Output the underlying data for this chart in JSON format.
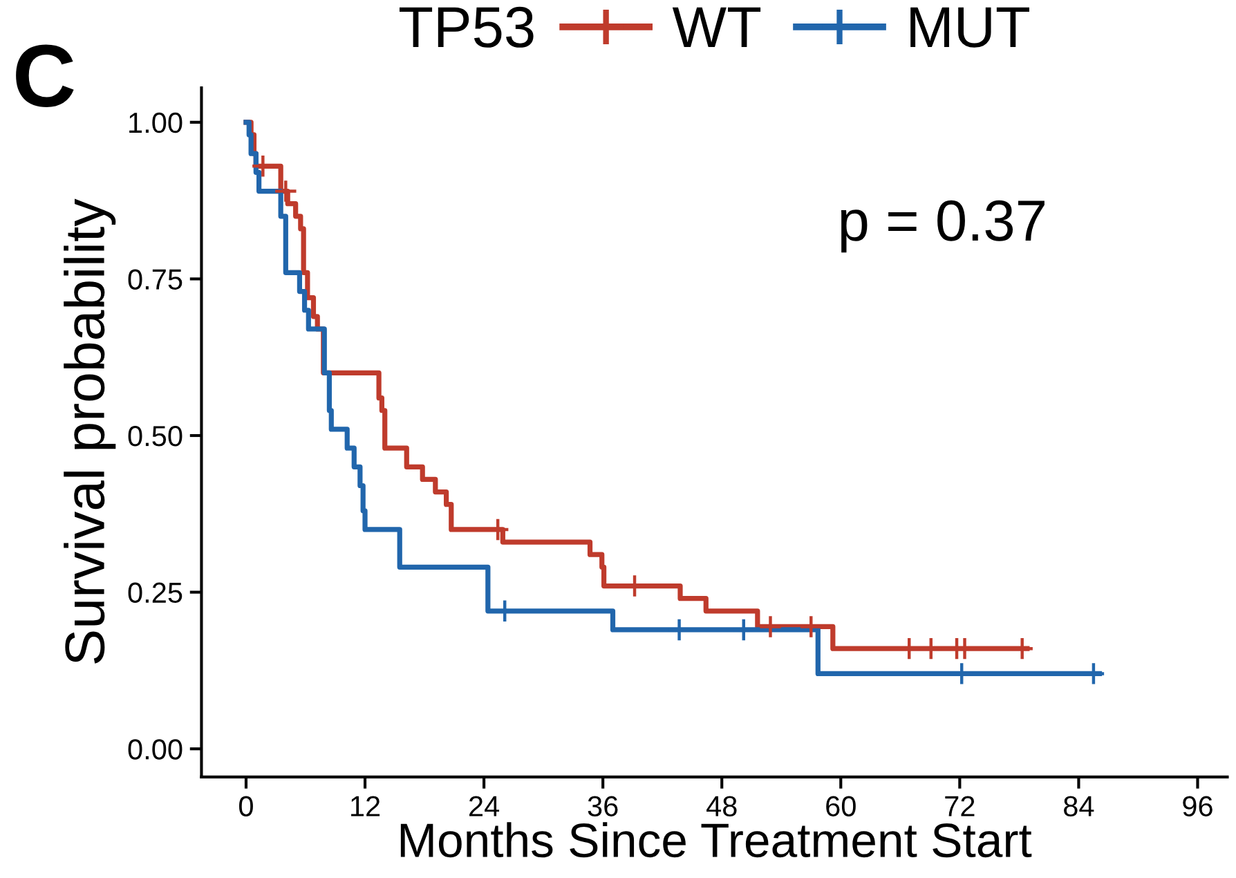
{
  "chart_data": {
    "type": "step",
    "xlabel": "Months Since Treatment Start",
    "ylabel": "Survival probability",
    "legend_title": "TP53",
    "legend": "top",
    "annotations": [
      "p = 0.37",
      "C"
    ],
    "xlim": [
      -4.5,
      99
    ],
    "ylim": [
      -0.045,
      1.055
    ],
    "xticks": [
      0,
      12,
      24,
      36,
      48,
      60,
      72,
      84,
      96
    ],
    "yticks": [
      {
        "value": 0,
        "label": "0.00"
      },
      {
        "value": 0.25,
        "label": "0.25"
      },
      {
        "value": 0.5,
        "label": "0.50"
      },
      {
        "value": 0.75,
        "label": "0.75"
      },
      {
        "value": 1,
        "label": "1.00"
      }
    ],
    "grid": false,
    "series": [
      {
        "name": "WT",
        "color": "#bf3b2c",
        "x": [
          0,
          0.5,
          0.8,
          1.0,
          3.5,
          4.2,
          5.0,
          5.5,
          5.8,
          6.2,
          6.8,
          7.2,
          7.8,
          10.2,
          13.4,
          13.7,
          14.0,
          16.2,
          17.8,
          19.1,
          20.2,
          20.7,
          25.9,
          34.7,
          35.9,
          36.1,
          43.8,
          46.4,
          51.6,
          59.2,
          78.8
        ],
        "values": [
          1.0,
          0.98,
          0.95,
          0.93,
          0.89,
          0.87,
          0.85,
          0.83,
          0.76,
          0.72,
          0.69,
          0.67,
          0.6,
          0.6,
          0.56,
          0.54,
          0.48,
          0.45,
          0.43,
          0.41,
          0.39,
          0.35,
          0.33,
          0.31,
          0.29,
          0.26,
          0.24,
          0.22,
          0.195,
          0.16,
          0.16
        ]
      },
      {
        "name": "MUT",
        "color": "#2166ac",
        "x": [
          0,
          0.3,
          0.5,
          1.0,
          1.3,
          3.5,
          4.0,
          5.4,
          5.9,
          6.3,
          7.9,
          8.4,
          8.6,
          10.2,
          10.9,
          11.5,
          11.8,
          12.0,
          15.5,
          24.4,
          37.0,
          57.7,
          86.1
        ],
        "values": [
          1.0,
          0.98,
          0.95,
          0.92,
          0.89,
          0.85,
          0.76,
          0.73,
          0.7,
          0.67,
          0.6,
          0.54,
          0.51,
          0.48,
          0.45,
          0.42,
          0.38,
          0.35,
          0.29,
          0.22,
          0.19,
          0.12,
          0.12
        ]
      },
      {
        "type": "scatter",
        "color": "#bf3b2c",
        "marker": "cross",
        "x": [
          1.7,
          4.0,
          25.4,
          39.2,
          52.9,
          57.0,
          66.9,
          69.1,
          71.7,
          72.5,
          78.3
        ],
        "values": [
          0.93,
          0.89,
          0.35,
          0.26,
          0.195,
          0.195,
          0.16,
          0.16,
          0.16,
          0.16,
          0.16
        ]
      },
      {
        "type": "scatter",
        "color": "#2166ac",
        "marker": "cross",
        "x": [
          26.1,
          43.7,
          50.2,
          72.2,
          85.5
        ],
        "values": [
          0.22,
          0.19,
          0.19,
          0.12,
          0.12
        ]
      }
    ]
  }
}
